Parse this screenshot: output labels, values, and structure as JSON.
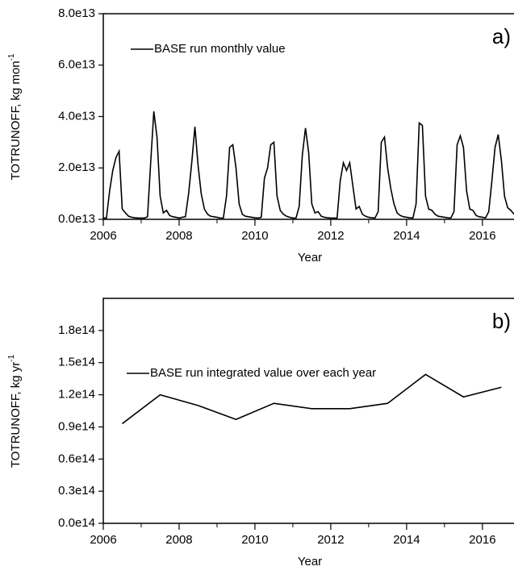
{
  "chart_data": [
    {
      "type": "line",
      "panel_label": "a)",
      "x_label": "Year",
      "y_label": "TOTRUNOFF, kg mon",
      "y_label_sup": "-1",
      "xlim": [
        2006,
        2016.833
      ],
      "xticks": [
        2006,
        2008,
        2010,
        2012,
        2014,
        2016
      ],
      "xminorticks": [
        2007,
        2009,
        2011,
        2013,
        2015
      ],
      "ylim": [
        0,
        80000000000000.0
      ],
      "yticks": [
        {
          "value": 0,
          "label": "0.0e13"
        },
        {
          "value": 20000000000000.0,
          "label": "2.0e13"
        },
        {
          "value": 40000000000000.0,
          "label": "4.0e13"
        },
        {
          "value": 60000000000000.0,
          "label": "6.0e13"
        },
        {
          "value": 80000000000000.0,
          "label": "8.0e13"
        }
      ],
      "series": [
        {
          "name": "BASE run monthly value",
          "color": "#000000",
          "x": [
            2006.0,
            2006.083,
            2006.167,
            2006.25,
            2006.333,
            2006.417,
            2006.5,
            2006.583,
            2006.667,
            2006.75,
            2006.833,
            2006.917,
            2007.0,
            2007.083,
            2007.167,
            2007.25,
            2007.333,
            2007.417,
            2007.5,
            2007.583,
            2007.667,
            2007.75,
            2007.833,
            2007.917,
            2008.0,
            2008.083,
            2008.167,
            2008.25,
            2008.333,
            2008.417,
            2008.5,
            2008.583,
            2008.667,
            2008.75,
            2008.833,
            2008.917,
            2009.0,
            2009.083,
            2009.167,
            2009.25,
            2009.333,
            2009.417,
            2009.5,
            2009.583,
            2009.667,
            2009.75,
            2009.833,
            2009.917,
            2010.0,
            2010.083,
            2010.167,
            2010.25,
            2010.333,
            2010.417,
            2010.5,
            2010.583,
            2010.667,
            2010.75,
            2010.833,
            2010.917,
            2011.0,
            2011.083,
            2011.167,
            2011.25,
            2011.333,
            2011.417,
            2011.5,
            2011.583,
            2011.667,
            2011.75,
            2011.833,
            2011.917,
            2012.0,
            2012.083,
            2012.167,
            2012.25,
            2012.333,
            2012.417,
            2012.5,
            2012.583,
            2012.667,
            2012.75,
            2012.833,
            2012.917,
            2013.0,
            2013.083,
            2013.167,
            2013.25,
            2013.333,
            2013.417,
            2013.5,
            2013.583,
            2013.667,
            2013.75,
            2013.833,
            2013.917,
            2014.0,
            2014.083,
            2014.167,
            2014.25,
            2014.333,
            2014.417,
            2014.5,
            2014.583,
            2014.667,
            2014.75,
            2014.833,
            2014.917,
            2015.0,
            2015.083,
            2015.167,
            2015.25,
            2015.333,
            2015.417,
            2015.5,
            2015.583,
            2015.667,
            2015.75,
            2015.833,
            2015.917,
            2016.0,
            2016.083,
            2016.167,
            2016.25,
            2016.333,
            2016.417,
            2016.5,
            2016.583,
            2016.667,
            2016.75,
            2016.833
          ],
          "values": [
            500000000000.0,
            500000000000.0,
            11000000000000.0,
            19000000000000.0,
            24000000000000.0,
            26500000000000.0,
            4000000000000.0,
            2500000000000.0,
            1200000000000.0,
            800000000000.0,
            600000000000.0,
            500000000000.0,
            500000000000.0,
            500000000000.0,
            1000000000000.0,
            22000000000000.0,
            42000000000000.0,
            32000000000000.0,
            9000000000000.0,
            2500000000000.0,
            3500000000000.0,
            1500000000000.0,
            1000000000000.0,
            800000000000.0,
            500000000000.0,
            800000000000.0,
            1000000000000.0,
            10000000000000.0,
            22000000000000.0,
            36000000000000.0,
            21000000000000.0,
            10000000000000.0,
            4000000000000.0,
            2000000000000.0,
            1200000000000.0,
            1000000000000.0,
            800000000000.0,
            500000000000.0,
            500000000000.0,
            9000000000000.0,
            28000000000000.0,
            29000000000000.0,
            20000000000000.0,
            6000000000000.0,
            2000000000000.0,
            1200000000000.0,
            1000000000000.0,
            800000000000.0,
            600000000000.0,
            500000000000.0,
            800000000000.0,
            16000000000000.0,
            20000000000000.0,
            29000000000000.0,
            30000000000000.0,
            9000000000000.0,
            3500000000000.0,
            2000000000000.0,
            1200000000000.0,
            800000000000.0,
            500000000000.0,
            500000000000.0,
            5000000000000.0,
            25000000000000.0,
            35500000000000.0,
            26000000000000.0,
            6000000000000.0,
            2500000000000.0,
            3000000000000.0,
            1200000000000.0,
            800000000000.0,
            600000000000.0,
            500000000000.0,
            500000000000.0,
            500000000000.0,
            15000000000000.0,
            22000000000000.0,
            19000000000000.0,
            22000000000000.0,
            13000000000000.0,
            4000000000000.0,
            5000000000000.0,
            2000000000000.0,
            1200000000000.0,
            800000000000.0,
            600000000000.0,
            500000000000.0,
            3000000000000.0,
            30000000000000.0,
            32000000000000.0,
            20000000000000.0,
            12000000000000.0,
            6000000000000.0,
            2500000000000.0,
            1500000000000.0,
            1000000000000.0,
            800000000000.0,
            600000000000.0,
            500000000000.0,
            6000000000000.0,
            37500000000000.0,
            36500000000000.0,
            9000000000000.0,
            4000000000000.0,
            3500000000000.0,
            2000000000000.0,
            1200000000000.0,
            1000000000000.0,
            800000000000.0,
            600000000000.0,
            500000000000.0,
            3000000000000.0,
            29000000000000.0,
            32500000000000.0,
            28000000000000.0,
            11000000000000.0,
            4000000000000.0,
            3500000000000.0,
            1500000000000.0,
            1000000000000.0,
            800000000000.0,
            600000000000.0,
            3000000000000.0,
            15000000000000.0,
            28000000000000.0,
            33000000000000.0,
            23000000000000.0,
            9000000000000.0,
            4500000000000.0,
            3500000000000.0,
            2000000000000.0
          ]
        }
      ]
    },
    {
      "type": "line",
      "panel_label": "b)",
      "x_label": "Year",
      "y_label": "TOTRUNOFF, kg yr",
      "y_label_sup": "-1",
      "xlim": [
        2006,
        2016.833
      ],
      "xticks": [
        2006,
        2008,
        2010,
        2012,
        2014,
        2016
      ],
      "xminorticks": [
        2007,
        2009,
        2011,
        2013,
        2015
      ],
      "ylim": [
        0,
        210000000000000.0
      ],
      "yticks": [
        {
          "value": 0,
          "label": "0.0e14"
        },
        {
          "value": 30000000000000.0,
          "label": "0.3e14"
        },
        {
          "value": 60000000000000.0,
          "label": "0.6e14"
        },
        {
          "value": 90000000000000.0,
          "label": "0.9e14"
        },
        {
          "value": 120000000000000.0,
          "label": "1.2e14"
        },
        {
          "value": 150000000000000.0,
          "label": "1.5e14"
        },
        {
          "value": 180000000000000.0,
          "label": "1.8e14"
        }
      ],
      "series": [
        {
          "name": "BASE run integrated value over each year",
          "color": "#000000",
          "x": [
            2006.5,
            2007.5,
            2008.5,
            2009.5,
            2010.5,
            2011.5,
            2012.5,
            2013.5,
            2014.5,
            2015.5,
            2016.5
          ],
          "values": [
            93000000000000.0,
            120000000000000.0,
            110000000000000.0,
            97000000000000.0,
            112000000000000.0,
            107000000000000.0,
            107000000000000.0,
            112000000000000.0,
            139000000000000.0,
            118000000000000.0,
            127000000000000.0
          ]
        }
      ]
    }
  ]
}
